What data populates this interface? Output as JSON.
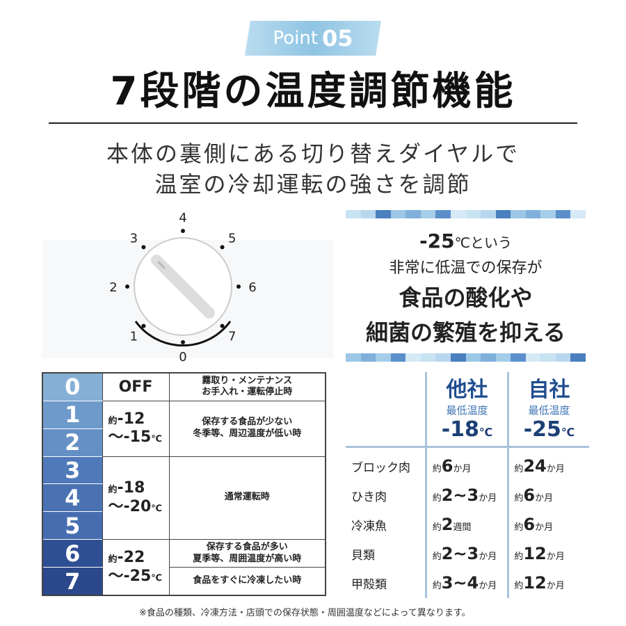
{
  "badge": {
    "label": "Point",
    "number": "05"
  },
  "title": "7段階の温度調節機能",
  "subtitle": [
    "本体の裏側にある切り替えダイヤルで",
    "温室の冷却運転の強さを調節"
  ],
  "dial": {
    "labels": [
      "0",
      "1",
      "2",
      "3",
      "4",
      "5",
      "6",
      "7"
    ]
  },
  "promo": {
    "temp": "-25",
    "unit": "℃という",
    "line2": "非常に低温での保存が",
    "line3": "食品の酸化や",
    "line4": "細菌の繁殖を抑える"
  },
  "stripe_colors": [
    "#c8e3f2",
    "#9cc7e6",
    "#5b8fcc",
    "#b7d7ee",
    "#7fb0dc",
    "#d6eaf5",
    "#4a7fc0",
    "#a5cde9"
  ],
  "levels": {
    "rows": [
      {
        "n": "0",
        "color": "#86afd6"
      },
      {
        "n": "1",
        "color": "#6e9acb"
      },
      {
        "n": "2",
        "color": "#6590c6"
      },
      {
        "n": "3",
        "color": "#4f79b8"
      },
      {
        "n": "4",
        "color": "#4a72b3"
      },
      {
        "n": "5",
        "color": "#456daf"
      },
      {
        "n": "6",
        "color": "#2f4f94"
      },
      {
        "n": "7",
        "color": "#2b488c"
      }
    ],
    "off": "OFF",
    "t1": {
      "a": "約",
      "b": "-12",
      "c": "～-15",
      "u": "℃"
    },
    "t2": {
      "a": "約",
      "b": "-18",
      "c": "～-20",
      "u": "℃"
    },
    "t3": {
      "a": "約",
      "b": "-22",
      "c": "～-25",
      "u": "℃"
    },
    "d0": [
      "霧取り・メンテナンス",
      "お手入れ・運転停止時"
    ],
    "d1": [
      "保存する食品が少ない",
      "冬季等、周辺温度が低い時"
    ],
    "d2": "通常運転時",
    "d3": [
      "保存する食品が多い",
      "夏季等、周囲温度が高い時"
    ],
    "d4": "食品をすぐに冷凍したい時"
  },
  "compare": {
    "cols": [
      {
        "name": "他社",
        "sub": "最低温度",
        "temp": "-18",
        "unit": "℃"
      },
      {
        "name": "自社",
        "sub": "最低温度",
        "temp": "-25",
        "unit": "℃"
      }
    ],
    "rows": [
      {
        "food": "ブロック肉",
        "a": [
          "約",
          "6",
          "か月"
        ],
        "b": [
          "約",
          "24",
          "か月"
        ]
      },
      {
        "food": "ひき肉",
        "a": [
          "約",
          "2~3",
          "か月"
        ],
        "b": [
          "約",
          "6",
          "か月"
        ]
      },
      {
        "food": "冷凍魚",
        "a": [
          "約",
          "2",
          "週間"
        ],
        "b": [
          "約",
          "6",
          "か月"
        ]
      },
      {
        "food": "貝類",
        "a": [
          "約",
          "2~3",
          "か月"
        ],
        "b": [
          "約",
          "12",
          "か月"
        ]
      },
      {
        "food": "甲殻類",
        "a": [
          "約",
          "3~4",
          "か月"
        ],
        "b": [
          "約",
          "12",
          "か月"
        ]
      }
    ]
  },
  "note": "※食品の種類、冷凍方法・店頭での保存状態・周囲温度などによって異なります。"
}
